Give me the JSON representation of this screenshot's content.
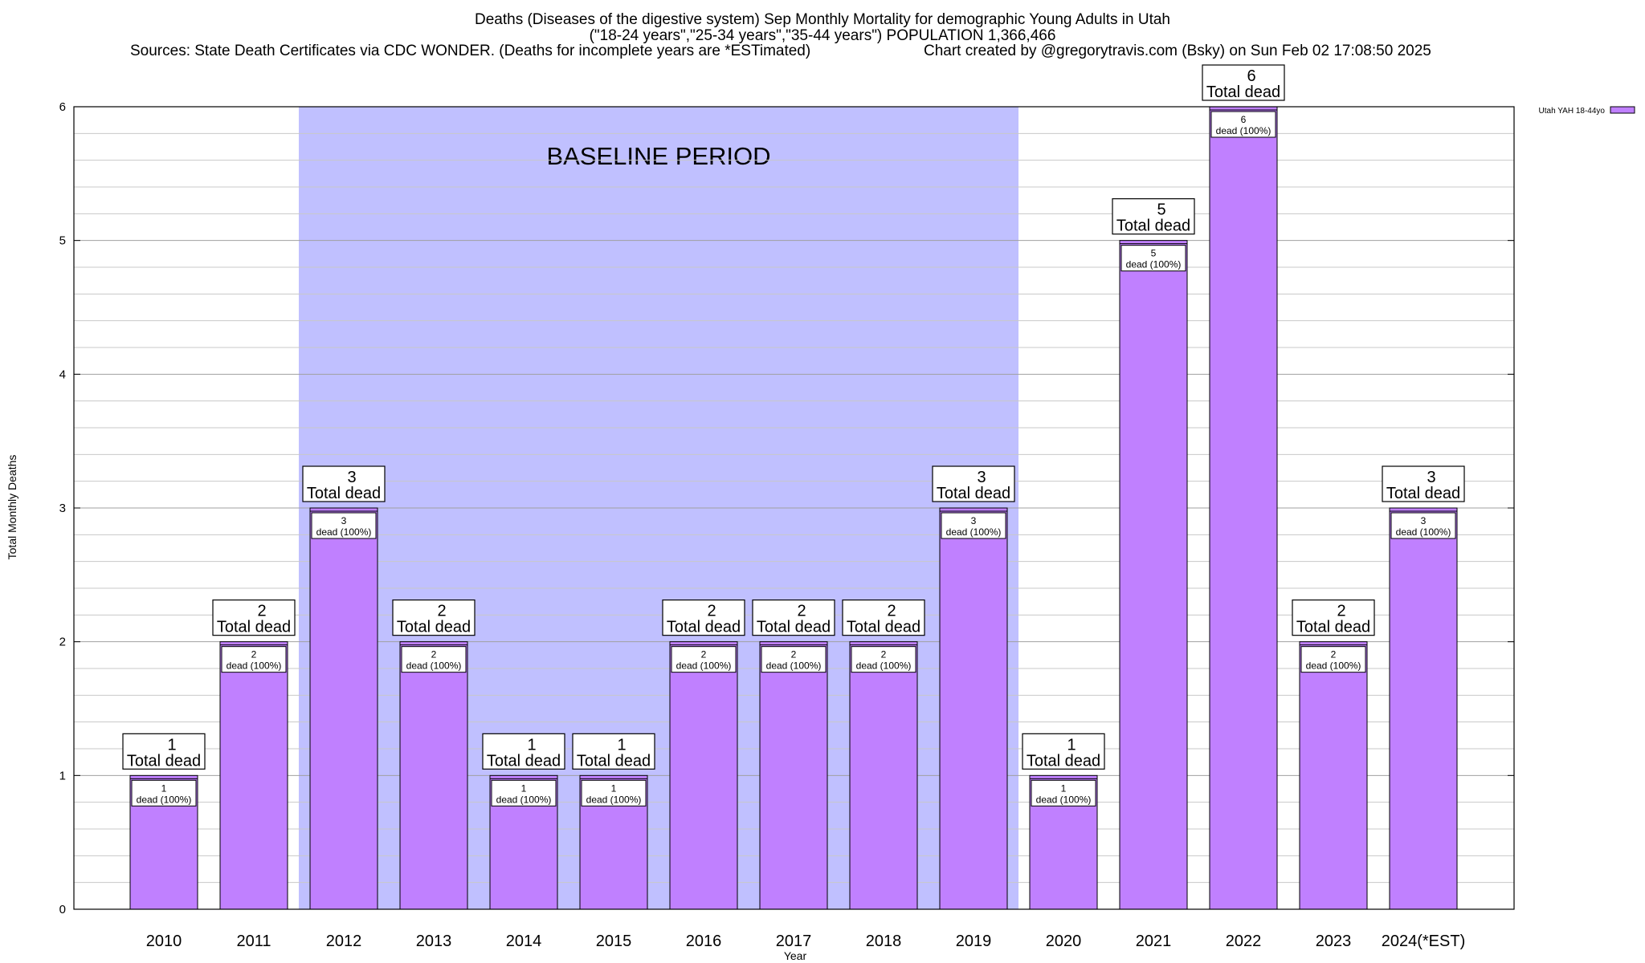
{
  "title": {
    "line1": "Deaths (Diseases of the digestive system) Sep Monthly Mortality for demographic Young Adults in Utah",
    "line2": "(\"18-24 years\",\"25-34 years\",\"35-44 years\") POPULATION 1,366,466",
    "line3_left": "Sources: State Death Certificates via CDC WONDER. (Deaths for incomplete years are *ESTimated)",
    "line3_right": "Chart created by @gregorytravis.com (Bsky) on Sun Feb 02 17:08:50 2025"
  },
  "chart_data": {
    "type": "bar",
    "title": "Deaths (Diseases of the digestive system) Sep Monthly Mortality for demographic Young Adults in Utah",
    "xlabel": "Year",
    "ylabel": "Total Monthly Deaths",
    "ylim": [
      0,
      6
    ],
    "yticks": [
      0,
      1,
      2,
      3,
      4,
      5,
      6
    ],
    "grid": true,
    "legend": {
      "position": "top-right",
      "entries": [
        "Utah YAH 18-44yo"
      ]
    },
    "categories": [
      "2010",
      "2011",
      "2012",
      "2013",
      "2014",
      "2015",
      "2016",
      "2017",
      "2018",
      "2019",
      "2020",
      "2021",
      "2022",
      "2023",
      "2024(*EST)"
    ],
    "series": [
      {
        "name": "Utah YAH 18-44yo",
        "color": "#c080ff",
        "values": [
          1,
          2,
          3,
          2,
          1,
          1,
          2,
          2,
          2,
          3,
          1,
          5,
          6,
          2,
          3
        ]
      }
    ],
    "total_label_text": "Total dead",
    "inner_label_text": "dead (100%)",
    "baseline": {
      "label": "BASELINE PERIOD",
      "from": "2012",
      "to": "2019",
      "color": "#c0c0ff"
    }
  }
}
